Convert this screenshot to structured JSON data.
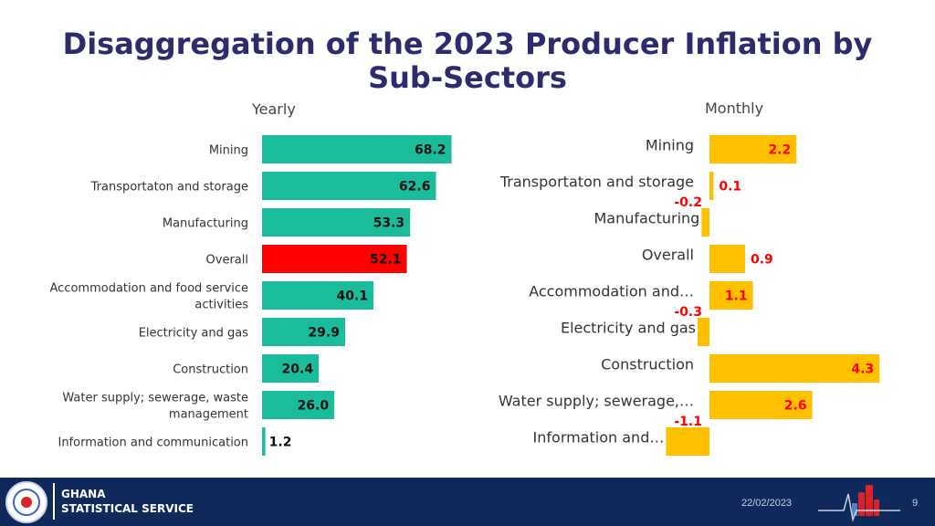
{
  "title": {
    "line1": "Disaggregation of the 2023 Producer Inflation by",
    "line2": "Sub-Sectors"
  },
  "subheads": {
    "yearly": "Yearly",
    "monthly": "Monthly"
  },
  "colors": {
    "yearly_bar": "#1abc9c",
    "yearly_highlight": "#ff0000",
    "monthly_bar": "#ffc000",
    "monthly_label": "#ff0000",
    "title": "#2e2a6e",
    "footer": "#0f2a5a"
  },
  "chart_data": [
    {
      "type": "bar",
      "orientation": "horizontal",
      "title": "Yearly",
      "categories": [
        "Mining",
        "Transportaton and storage",
        "Manufacturing",
        "Overall",
        "Accommodation and food service activities",
        "Electricity and gas",
        "Construction",
        "Water supply; sewerage, waste management",
        "Information and communication"
      ],
      "category_label_lines": [
        [
          "Mining"
        ],
        [
          "Transportaton and storage"
        ],
        [
          "Manufacturing"
        ],
        [
          "Overall"
        ],
        [
          "Accommodation and food service",
          "activities"
        ],
        [
          "Electricity and gas"
        ],
        [
          "Construction"
        ],
        [
          "Water supply; sewerage, waste",
          "management"
        ],
        [
          "Information and communication"
        ]
      ],
      "values": [
        68.2,
        62.6,
        53.3,
        52.1,
        40.1,
        29.9,
        20.4,
        26.0,
        1.2
      ],
      "value_labels": [
        "68.2",
        "62.6",
        "53.3",
        "52.1",
        "40.1",
        "29.9",
        "20.4",
        "26.0",
        "1.2"
      ],
      "highlight": "Overall",
      "xlim": [
        0,
        70
      ]
    },
    {
      "type": "bar",
      "orientation": "horizontal",
      "title": "Monthly",
      "categories": [
        "Mining",
        "Transportaton and storage",
        "Manufacturing",
        "Overall",
        "Accommodation and…",
        "Electricity and gas",
        "Construction",
        "Water supply; sewerage,…",
        "Information and…"
      ],
      "values": [
        2.2,
        0.1,
        -0.2,
        0.9,
        1.1,
        -0.3,
        4.3,
        2.6,
        -1.1
      ],
      "value_labels": [
        "2.2",
        "0.1",
        "-0.2",
        "0.9",
        "1.1",
        "-0.3",
        "4.3",
        "2.6",
        "-1.1"
      ],
      "xlim": [
        -1.1,
        4.3
      ]
    }
  ],
  "footer": {
    "org_line1": "GHANA",
    "org_line2": "STATISTICAL SERVICE",
    "date": "22/02/2023",
    "page": "9"
  }
}
